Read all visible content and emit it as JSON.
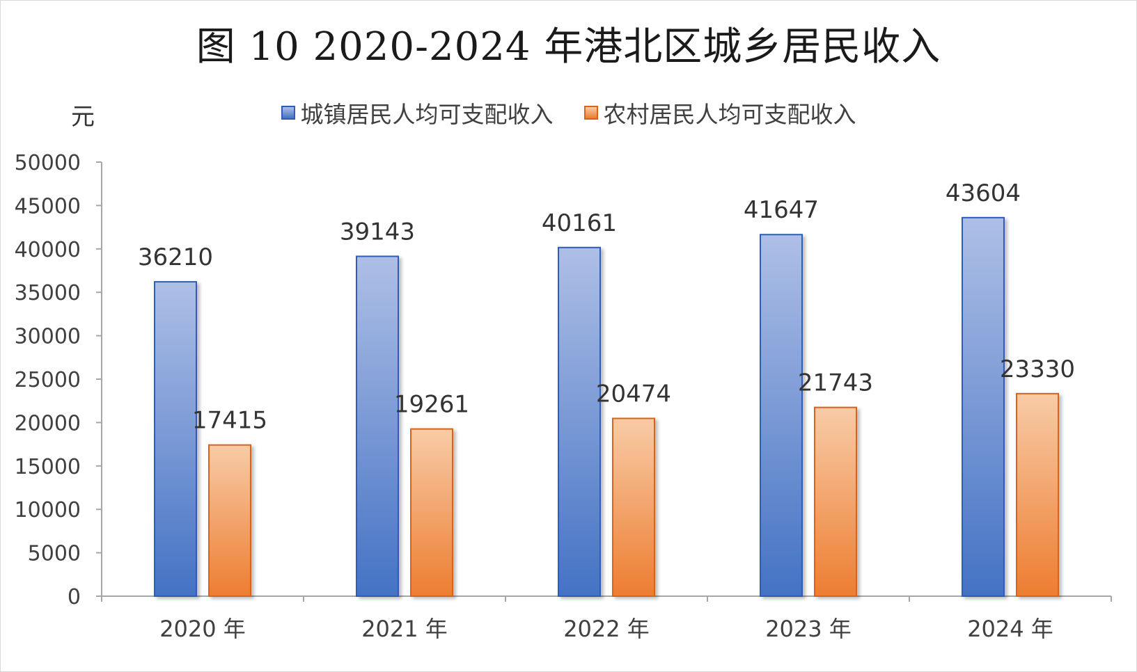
{
  "title": "图 10  2020-2024 年港北区城乡居民收入",
  "unit_label": "元",
  "colors": {
    "urban_top": "#aebfe6",
    "urban_bottom": "#4472c4",
    "urban_border": "#2f5cb8",
    "rural_top": "#f8cba6",
    "rural_bottom": "#ed7d31",
    "rural_border": "#d8631b"
  },
  "chart_data": {
    "type": "bar",
    "title": "图 10  2020-2024 年港北区城乡居民收入",
    "categories": [
      "2020 年",
      "2021 年",
      "2022 年",
      "2023 年",
      "2024 年"
    ],
    "series": [
      {
        "name": "城镇居民人均可支配收入",
        "values": [
          36210,
          39143,
          40161,
          41647,
          43604
        ]
      },
      {
        "name": "农村居民人均可支配收入",
        "values": [
          17415,
          19261,
          20474,
          21743,
          23330
        ]
      }
    ],
    "ylabel": "元",
    "ylim": [
      0,
      50000
    ],
    "yticks": [
      0,
      5000,
      10000,
      15000,
      20000,
      25000,
      30000,
      35000,
      40000,
      45000,
      50000
    ],
    "ytick_labels": [
      "0",
      "5000",
      "10000",
      "15000",
      "20000",
      "25000",
      "30000",
      "35000",
      "40000",
      "45000",
      "50000"
    ],
    "grid": false,
    "legend": "top-center"
  }
}
